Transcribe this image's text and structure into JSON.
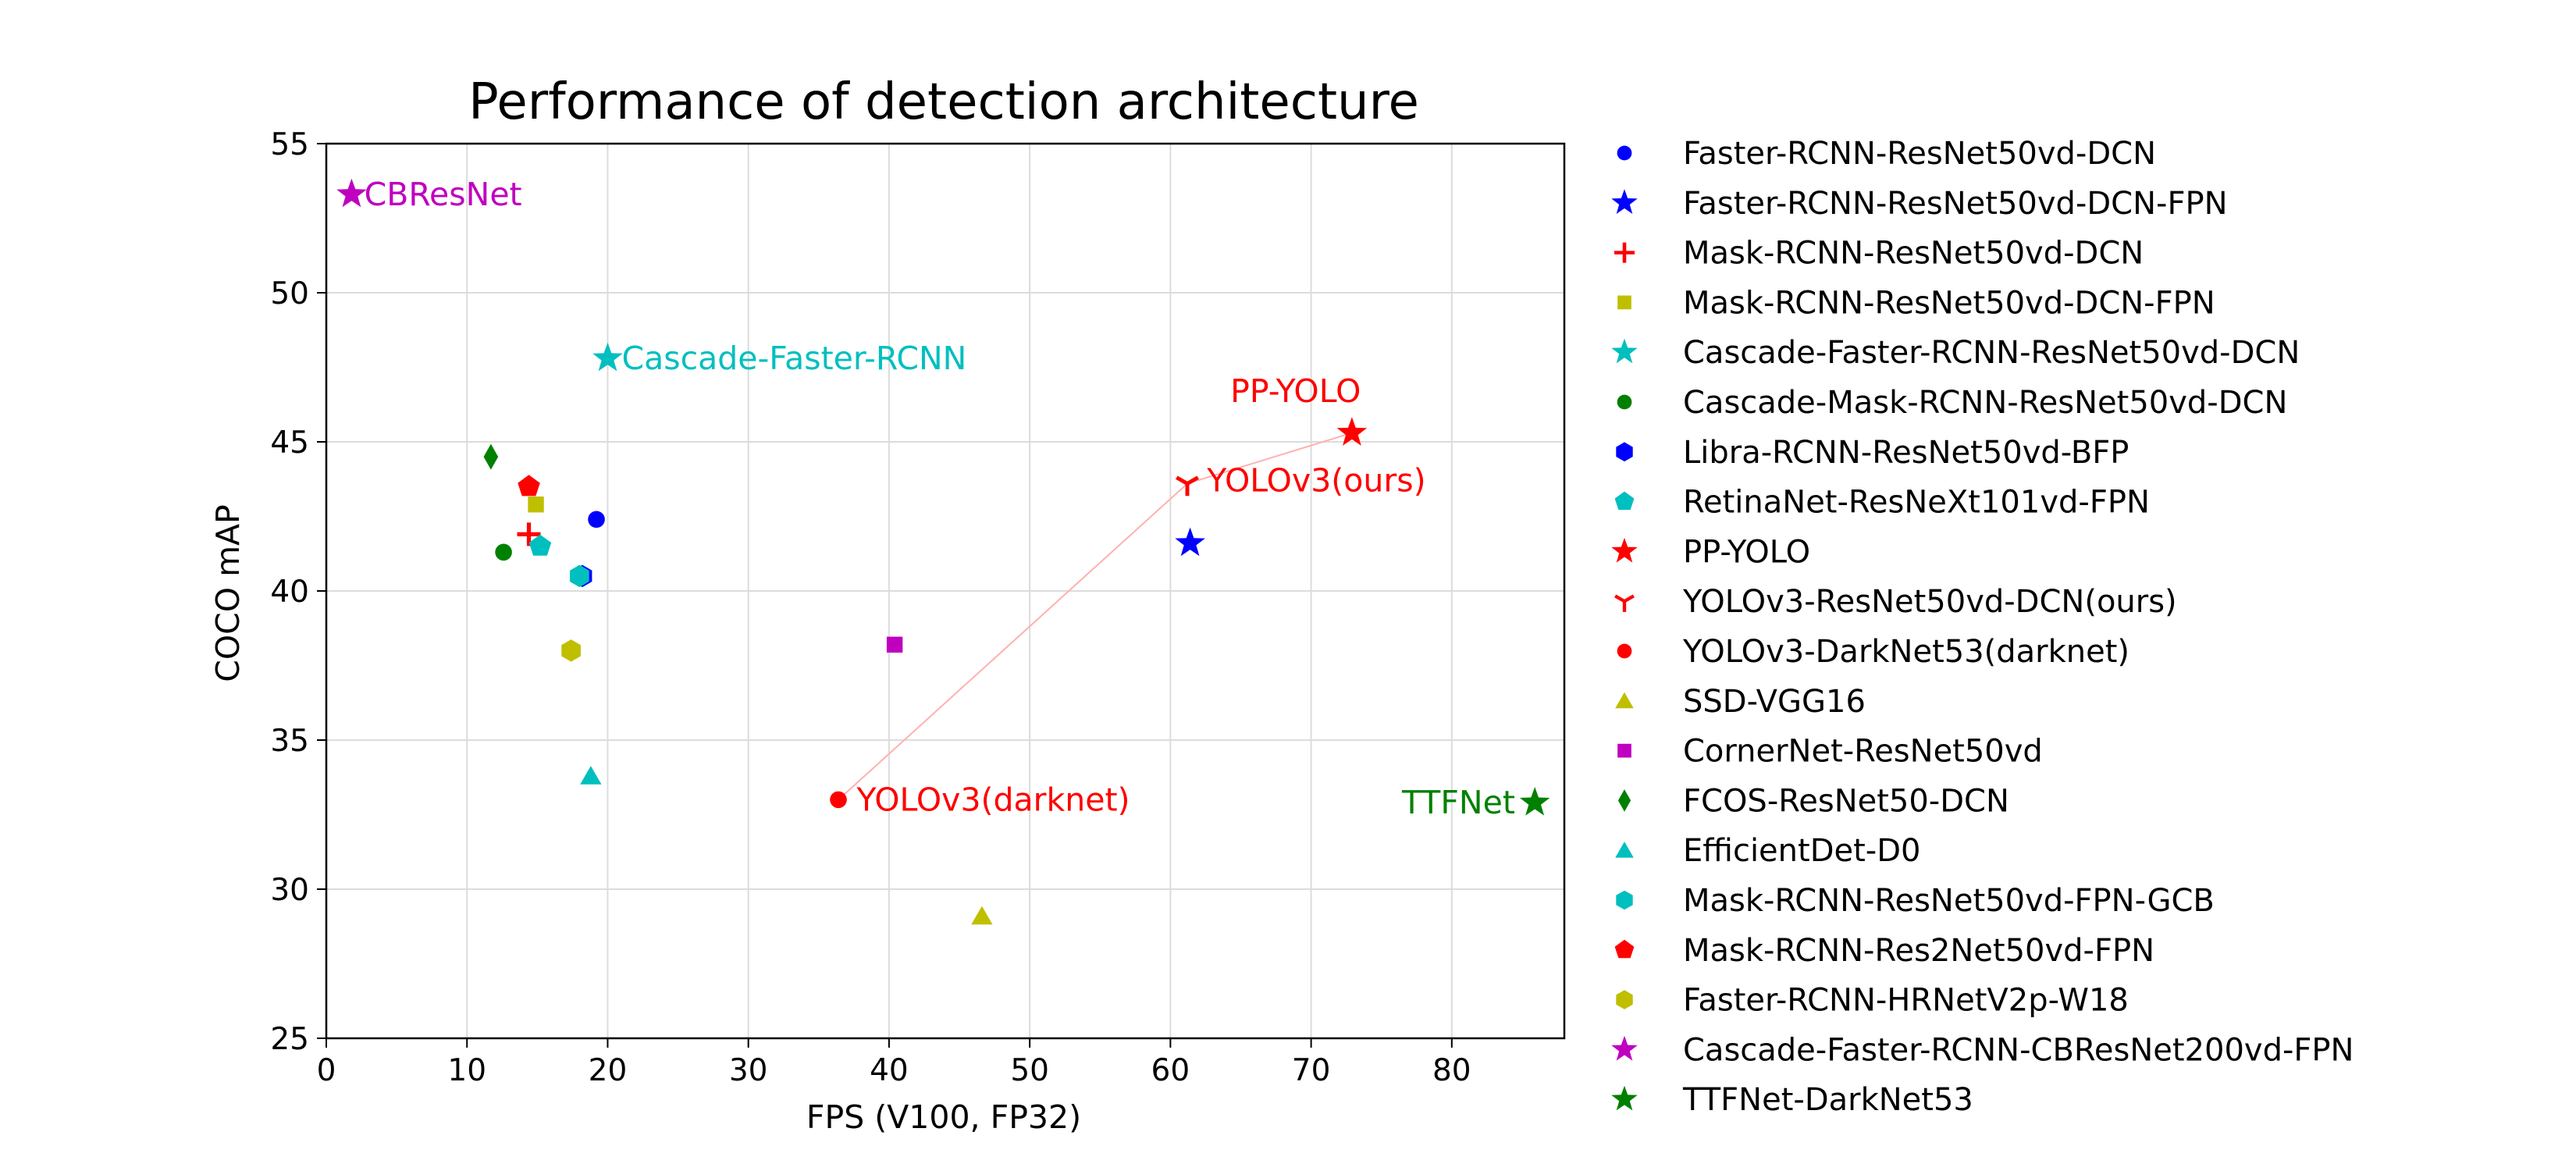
{
  "chart_data": {
    "type": "scatter",
    "title": "Performance of detection architecture",
    "xlabel": "FPS (V100, FP32)",
    "ylabel": "COCO mAP",
    "xlim": [
      0,
      88
    ],
    "ylim": [
      25,
      55
    ],
    "xticks": [
      0,
      10,
      20,
      30,
      40,
      50,
      60,
      70,
      80
    ],
    "yticks": [
      25,
      30,
      35,
      40,
      45,
      50,
      55
    ],
    "grid": true,
    "legend_position": "outside-right",
    "series": [
      {
        "name": "Faster-RCNN-ResNet50vd-DCN",
        "x": 19.2,
        "y": 42.4,
        "marker": "circle",
        "color": "#0000ff"
      },
      {
        "name": "Faster-RCNN-ResNet50vd-DCN-FPN",
        "x": 61.4,
        "y": 41.6,
        "marker": "star",
        "color": "#0000ff"
      },
      {
        "name": "Mask-RCNN-ResNet50vd-DCN",
        "x": 14.4,
        "y": 41.9,
        "marker": "plus",
        "color": "#ff0000"
      },
      {
        "name": "Mask-RCNN-ResNet50vd-DCN-FPN",
        "x": 14.9,
        "y": 42.9,
        "marker": "square",
        "color": "#bfbf00"
      },
      {
        "name": "Cascade-Faster-RCNN-ResNet50vd-DCN",
        "x": 20.0,
        "y": 47.8,
        "marker": "star",
        "color": "#00bfbf"
      },
      {
        "name": "Cascade-Mask-RCNN-ResNet50vd-DCN",
        "x": 12.6,
        "y": 41.3,
        "marker": "circle",
        "color": "#008000"
      },
      {
        "name": "Libra-RCNN-ResNet50vd-BFP",
        "x": 18.2,
        "y": 40.5,
        "marker": "hexagon",
        "color": "#0000ff"
      },
      {
        "name": "RetinaNet-ResNeXt101vd-FPN",
        "x": 15.2,
        "y": 41.5,
        "marker": "pentagon",
        "color": "#00bfbf"
      },
      {
        "name": "PP-YOLO",
        "x": 72.9,
        "y": 45.3,
        "marker": "star",
        "color": "#ff0000"
      },
      {
        "name": "YOLOv3-ResNet50vd-DCN(ours)",
        "x": 61.2,
        "y": 43.6,
        "marker": "tri",
        "color": "#ff0000"
      },
      {
        "name": "YOLOv3-DarkNet53(darknet)",
        "x": 36.4,
        "y": 33.0,
        "marker": "circle",
        "color": "#ff0000"
      },
      {
        "name": "SSD-VGG16",
        "x": 46.6,
        "y": 29.1,
        "marker": "triangle",
        "color": "#bfbf00"
      },
      {
        "name": "CornerNet-ResNet50vd",
        "x": 40.4,
        "y": 38.2,
        "marker": "square",
        "color": "#bf00bf"
      },
      {
        "name": "FCOS-ResNet50-DCN",
        "x": 11.7,
        "y": 44.5,
        "marker": "diamond",
        "color": "#008000"
      },
      {
        "name": "EfficientDet-D0",
        "x": 18.8,
        "y": 33.8,
        "marker": "triangle",
        "color": "#00bfbf"
      },
      {
        "name": "Mask-RCNN-ResNet50vd-FPN-GCB",
        "x": 18.0,
        "y": 40.5,
        "marker": "hexagon",
        "color": "#00bfbf"
      },
      {
        "name": "Mask-RCNN-Res2Net50vd-FPN",
        "x": 14.4,
        "y": 43.5,
        "marker": "pentagon",
        "color": "#ff0000"
      },
      {
        "name": "Faster-RCNN-HRNetV2p-W18",
        "x": 17.4,
        "y": 38.0,
        "marker": "hexagon",
        "color": "#bfbf00"
      },
      {
        "name": "Cascade-Faster-RCNN-CBResNet200vd-FPN",
        "x": 1.8,
        "y": 53.3,
        "marker": "star",
        "color": "#bf00bf"
      },
      {
        "name": "TTFNet-DarkNet53",
        "x": 85.9,
        "y": 32.9,
        "marker": "star",
        "color": "#008000"
      }
    ],
    "trend_line": {
      "x": [
        36.4,
        61.2,
        72.9
      ],
      "y": [
        33.0,
        43.6,
        45.3
      ],
      "color": "#ffb0b0"
    },
    "annotations": [
      {
        "text": "CBResNet",
        "x": 1.8,
        "y": 53.3,
        "color": "#bf00bf",
        "anchor": "start",
        "dx": 0.9,
        "dy": 0
      },
      {
        "text": "Cascade-Faster-RCNN",
        "x": 20.0,
        "y": 47.8,
        "color": "#00bfbf",
        "anchor": "start",
        "dx": 1.0,
        "dy": 0
      },
      {
        "text": "PP-YOLO",
        "x": 72.9,
        "y": 45.3,
        "color": "#ff0000",
        "anchor": "middle",
        "dx": -4.0,
        "dy": 1.4
      },
      {
        "text": "YOLOv3(ours)",
        "x": 61.2,
        "y": 43.6,
        "color": "#ff0000",
        "anchor": "start",
        "dx": 1.4,
        "dy": 0.1
      },
      {
        "text": "YOLOv3(darknet)",
        "x": 36.4,
        "y": 33.0,
        "color": "#ff0000",
        "anchor": "start",
        "dx": 1.3,
        "dy": 0
      },
      {
        "text": "TTFNet",
        "x": 85.9,
        "y": 32.9,
        "color": "#008000",
        "anchor": "end",
        "dx": -1.4,
        "dy": 0
      }
    ]
  }
}
